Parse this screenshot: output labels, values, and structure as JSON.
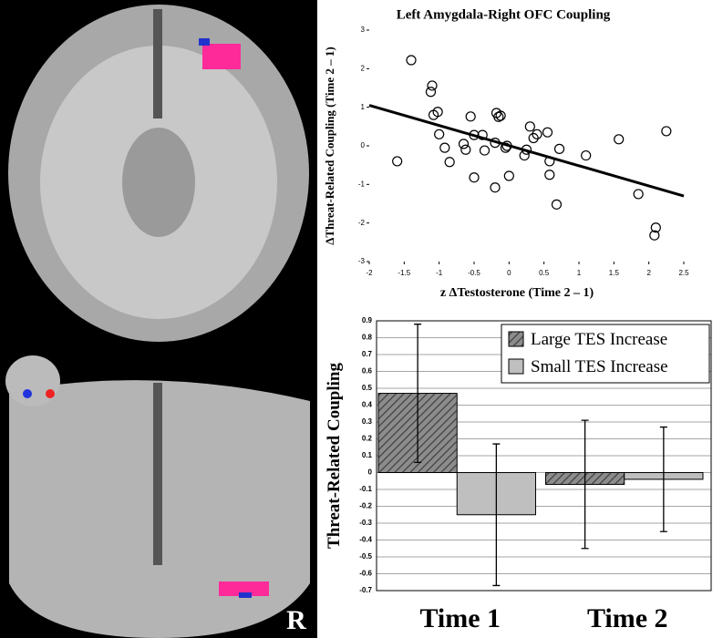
{
  "figure": {
    "orientation_label": "R"
  },
  "chart_data": [
    {
      "type": "scatter",
      "title": "Left Amygdala-Right OFC Coupling",
      "x_label": "z ΔTestosterone (Time 2 – 1)",
      "y_label": "ΔThreat-Related Coupling (Time 2 – 1)",
      "x": [
        -1.4,
        -1.6,
        -1.1,
        -1.12,
        -1.08,
        -1.02,
        -1.0,
        -0.92,
        -0.85,
        -0.65,
        -0.62,
        -0.55,
        -0.5,
        -0.5,
        -0.38,
        -0.35,
        -0.18,
        -0.15,
        -0.12,
        -0.2,
        -0.2,
        -0.05,
        -0.03,
        0.0,
        0.22,
        0.25,
        0.3,
        0.35,
        0.4,
        0.55,
        0.58,
        0.58,
        0.68,
        0.72,
        1.1,
        1.57,
        1.85,
        2.1,
        2.08,
        2.25
      ],
      "y": [
        2.22,
        -0.4,
        1.56,
        1.4,
        0.8,
        0.88,
        0.3,
        -0.05,
        -0.42,
        0.05,
        -0.1,
        0.76,
        0.28,
        -0.82,
        0.28,
        -0.12,
        0.85,
        0.75,
        0.78,
        0.08,
        -1.08,
        -0.05,
        0.0,
        -0.78,
        -0.25,
        -0.1,
        0.5,
        0.2,
        0.3,
        0.35,
        -0.4,
        -0.75,
        -1.52,
        -0.08,
        -0.25,
        0.17,
        -1.25,
        -2.12,
        -2.32,
        0.38
      ],
      "fit_line": {
        "x": [
          -2,
          2.5
        ],
        "y": [
          1.05,
          -1.3
        ]
      },
      "color": "#000000",
      "xlim": [
        -2,
        2.5
      ],
      "xticks": [
        -2,
        -1.5,
        -1,
        -0.5,
        0,
        0.5,
        1,
        1.5,
        2,
        2.5
      ],
      "ylim": [
        -3,
        3
      ],
      "yticks": [
        -3,
        -2,
        -1,
        0,
        1,
        2,
        3
      ]
    },
    {
      "type": "bar",
      "y_label": "Threat-Related Coupling",
      "categories": [
        "Time 1",
        "Time 2"
      ],
      "series": [
        {
          "name": "Large TES Increase",
          "color": "#7f7f7f",
          "hatch": true,
          "values": [
            0.47,
            -0.07
          ],
          "errors": [
            0.41,
            0.38
          ]
        },
        {
          "name": "Small TES Increase",
          "color": "#bfbfbf",
          "hatch": false,
          "values": [
            -0.25,
            -0.04
          ],
          "errors": [
            0.42,
            0.31
          ]
        }
      ],
      "ylim": [
        -0.7,
        0.9
      ],
      "yticks": [
        -0.7,
        -0.6,
        -0.5,
        -0.4,
        -0.3,
        -0.2,
        -0.1,
        0,
        0.1,
        0.2,
        0.3,
        0.4,
        0.5,
        0.6,
        0.7,
        0.8,
        0.9
      ],
      "grid": true,
      "legend": "top-right"
    }
  ]
}
